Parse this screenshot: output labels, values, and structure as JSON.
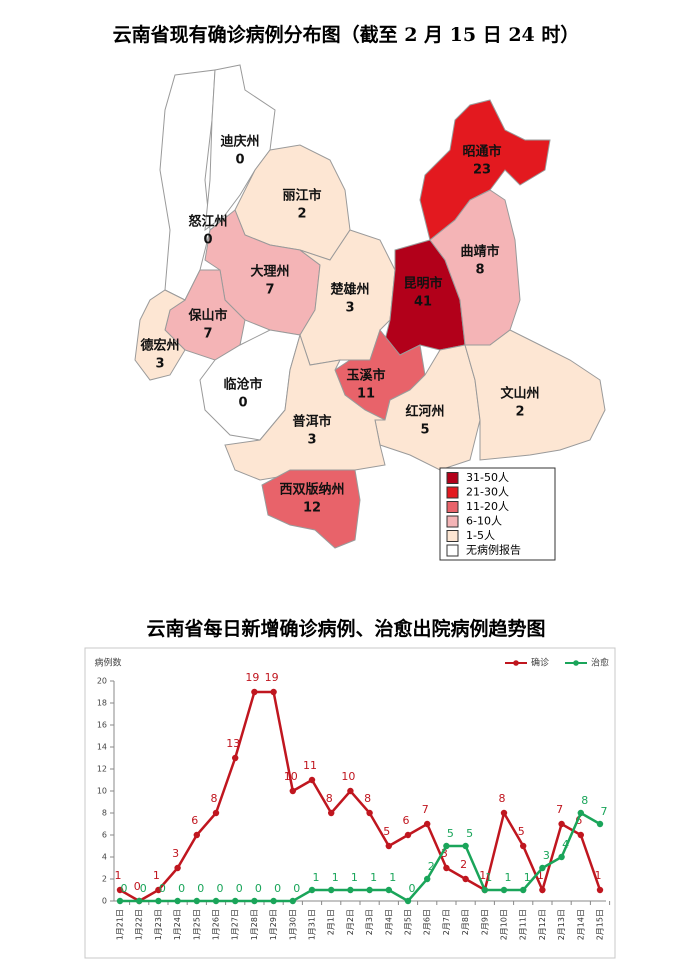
{
  "chart_data": [
    {
      "type": "map",
      "title": "云南省现有确诊病例分布图（截至 2 月 15 日 24 时）",
      "regions": [
        {
          "name": "怒江州",
          "value": 0,
          "color": "#ffffff"
        },
        {
          "name": "迪庆州",
          "value": 0,
          "color": "#ffffff"
        },
        {
          "name": "丽江市",
          "value": 2,
          "color": "#fde6d3"
        },
        {
          "name": "大理州",
          "value": 7,
          "color": "#f4b4b6"
        },
        {
          "name": "保山市",
          "value": 7,
          "color": "#f4b4b6"
        },
        {
          "name": "德宏州",
          "value": 3,
          "color": "#fde6d3"
        },
        {
          "name": "临沧市",
          "value": 0,
          "color": "#ffffff"
        },
        {
          "name": "楚雄州",
          "value": 3,
          "color": "#fde6d3"
        },
        {
          "name": "昆明市",
          "value": 41,
          "color": "#b2001a"
        },
        {
          "name": "昭通市",
          "value": 23,
          "color": "#e3191f"
        },
        {
          "name": "曲靖市",
          "value": 8,
          "color": "#f4b4b6"
        },
        {
          "name": "玉溪市",
          "value": 11,
          "color": "#e8636a"
        },
        {
          "name": "红河州",
          "value": 5,
          "color": "#fde6d3"
        },
        {
          "name": "文山州",
          "value": 2,
          "color": "#fde6d3"
        },
        {
          "name": "普洱市",
          "value": 3,
          "color": "#fde6d3"
        },
        {
          "name": "西双版纳州",
          "value": 12,
          "color": "#e8636a"
        }
      ],
      "legend": [
        {
          "label": "31-50人",
          "color": "#b2001a"
        },
        {
          "label": "21-30人",
          "color": "#e3191f"
        },
        {
          "label": "11-20人",
          "color": "#e8636a"
        },
        {
          "label": "6-10人",
          "color": "#f4b4b6"
        },
        {
          "label": "1-5人",
          "color": "#fde6d3"
        },
        {
          "label": "无病例报告",
          "color": "#ffffff"
        }
      ]
    },
    {
      "type": "line",
      "title": "云南省每日新增确诊病例、治愈出院病例趋势图",
      "ylabel": "病例数",
      "x": [
        "1月21日",
        "1月22日",
        "1月23日",
        "1月24日",
        "1月25日",
        "1月26日",
        "1月27日",
        "1月28日",
        "1月29日",
        "1月30日",
        "1月31日",
        "2月1日",
        "2月2日",
        "2月3日",
        "2月4日",
        "2月5日",
        "2月6日",
        "2月7日",
        "2月8日",
        "2月9日",
        "2月10日",
        "2月11日",
        "2月12日",
        "2月13日",
        "2月14日",
        "2月15日"
      ],
      "series": [
        {
          "name": "确诊",
          "color": "#c0161f",
          "values": [
            1,
            0,
            1,
            3,
            6,
            8,
            13,
            19,
            19,
            10,
            11,
            8,
            10,
            8,
            5,
            6,
            7,
            3,
            2,
            1,
            8,
            5,
            1,
            7,
            6,
            1
          ]
        },
        {
          "name": "治愈",
          "color": "#1aa55a",
          "values": [
            0,
            0,
            0,
            0,
            0,
            0,
            0,
            0,
            0,
            0,
            1,
            1,
            1,
            1,
            1,
            0,
            2,
            5,
            5,
            1,
            1,
            1,
            3,
            4,
            8,
            7
          ]
        }
      ],
      "ylim": [
        0,
        20
      ],
      "yticks": [
        0,
        2,
        4,
        6,
        8,
        10,
        12,
        14,
        16,
        18,
        20
      ],
      "legend": "top-right",
      "data_labels": true
    }
  ]
}
